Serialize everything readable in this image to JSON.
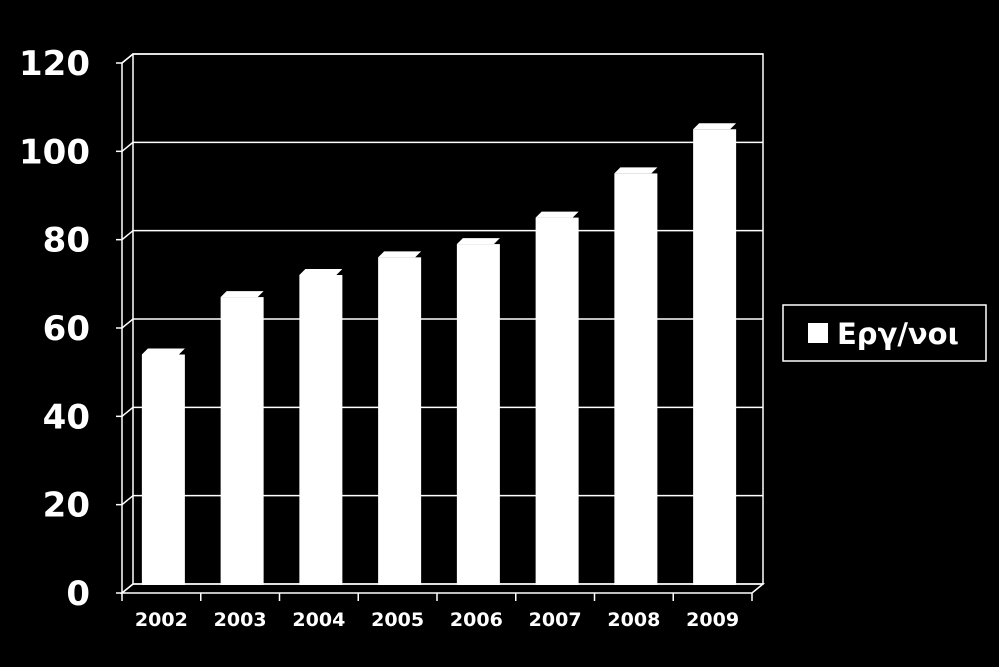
{
  "chart_data": {
    "type": "bar",
    "categories": [
      "2002",
      "2003",
      "2004",
      "2005",
      "2006",
      "2007",
      "2008",
      "2009"
    ],
    "series": [
      {
        "name": "Εργ/νοι",
        "values": [
          54,
          67,
          72,
          76,
          79,
          85,
          95,
          105
        ]
      }
    ],
    "ylim": [
      0,
      120
    ],
    "yticks": [
      0,
      20,
      40,
      60,
      80,
      100,
      120
    ],
    "grid": true,
    "legend": "right",
    "title": "",
    "xlabel": "",
    "ylabel": "",
    "colors": {
      "background": "#000000",
      "bar": "#ffffff",
      "grid": "#ffffff",
      "text": "#ffffff"
    }
  }
}
